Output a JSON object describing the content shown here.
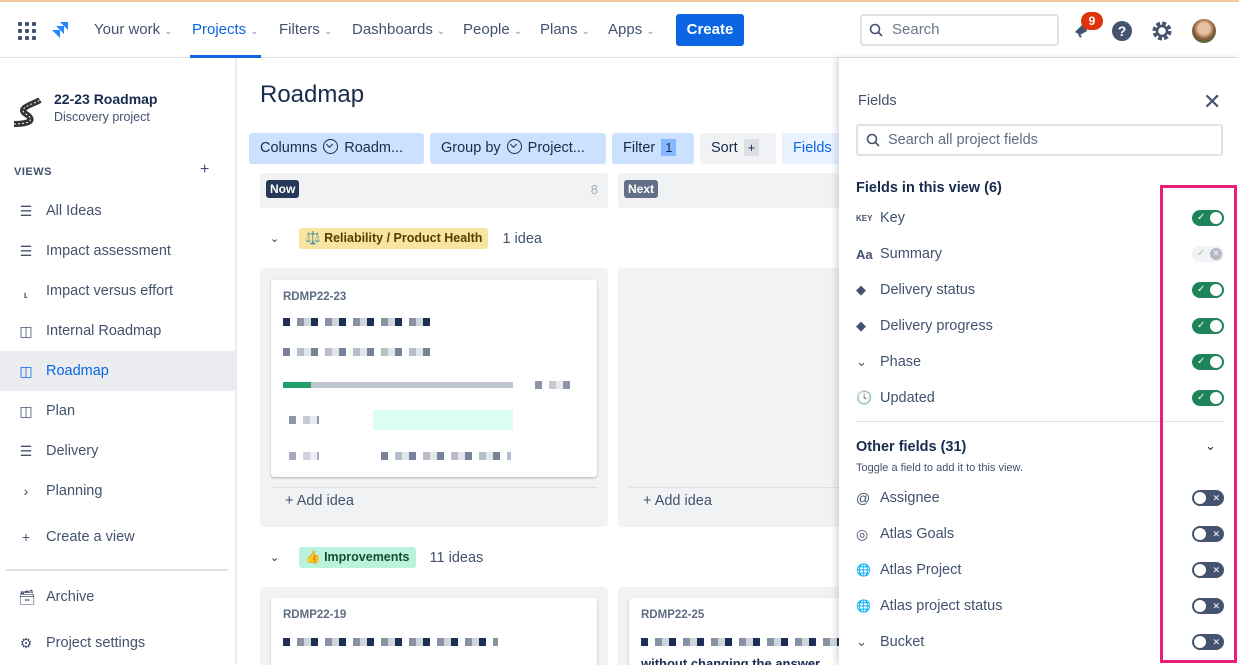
{
  "nav": {
    "items": [
      "Your work",
      "Projects",
      "Filters",
      "Dashboards",
      "People",
      "Plans",
      "Apps"
    ],
    "active": "Projects",
    "create": "Create",
    "search_placeholder": "Search",
    "notifications": "9"
  },
  "sidebar": {
    "project_name": "22-23 Roadmap",
    "project_type": "Discovery project",
    "views_label": "VIEWS",
    "add_view": "+",
    "items": [
      {
        "label": "All Ideas",
        "icon": "list-icon"
      },
      {
        "label": "Impact assessment",
        "icon": "list-icon"
      },
      {
        "label": "Impact versus effort",
        "icon": "matrix-icon"
      },
      {
        "label": "Internal Roadmap",
        "icon": "board-icon"
      },
      {
        "label": "Roadmap",
        "icon": "board-icon",
        "active": true
      },
      {
        "label": "Plan",
        "icon": "board-icon"
      },
      {
        "label": "Delivery",
        "icon": "list-icon"
      },
      {
        "label": "Planning",
        "icon": "chevron-right-icon"
      },
      {
        "label": "Create a view",
        "icon": "plus-icon"
      }
    ],
    "archive": "Archive",
    "settings": "Project settings"
  },
  "main": {
    "title": "Roadmap",
    "toolbar": {
      "columns": "Columns",
      "columns_value": "Roadm...",
      "group_by": "Group by",
      "group_value": "Project...",
      "filter": "Filter",
      "filter_count": "1",
      "sort": "Sort",
      "sort_plus": "+",
      "fields": "Fields"
    },
    "columns": [
      {
        "label": "Now",
        "count": "8",
        "color": "#253858"
      },
      {
        "label": "Next",
        "color": "#626f86"
      }
    ],
    "groups": [
      {
        "label": "Reliability / Product Health",
        "emoji": "⚖️",
        "count": "1 idea",
        "color": "#f8e6a0",
        "cards": [
          {
            "key": "RDMP22-23"
          }
        ]
      },
      {
        "label": "Improvements",
        "emoji": "👍",
        "count": "11 ideas",
        "color": "#baf3db",
        "cards": [
          {
            "key": "RDMP22-19"
          },
          {
            "key": "RDMP22-25",
            "text": "without changing the answer"
          }
        ]
      }
    ],
    "add_idea": "+ Add idea"
  },
  "panel": {
    "title": "Fields",
    "search_placeholder": "Search all project fields",
    "in_view_title": "Fields in this view (6)",
    "in_view": [
      {
        "label": "Key",
        "icon": "KEY",
        "state": "on"
      },
      {
        "label": "Summary",
        "icon": "Aa",
        "state": "disabled"
      },
      {
        "label": "Delivery status",
        "icon": "◆",
        "state": "on"
      },
      {
        "label": "Delivery progress",
        "icon": "◆",
        "state": "on"
      },
      {
        "label": "Phase",
        "icon": "⌄",
        "state": "on"
      },
      {
        "label": "Updated",
        "icon": "🕓",
        "state": "on"
      }
    ],
    "other_title": "Other fields (31)",
    "other_sub": "Toggle a field to add it to this view.",
    "other": [
      {
        "label": "Assignee",
        "icon": "@"
      },
      {
        "label": "Atlas Goals",
        "icon": "◎"
      },
      {
        "label": "Atlas Project",
        "icon": "🌐"
      },
      {
        "label": "Atlas project status",
        "icon": "🌐"
      },
      {
        "label": "Bucket",
        "icon": "⌄"
      }
    ]
  },
  "colors": {
    "accent": "#0c66e4",
    "toggle_on": "#1f845a",
    "toggle_off": "#44546f",
    "highlight": "#e91e7a"
  }
}
